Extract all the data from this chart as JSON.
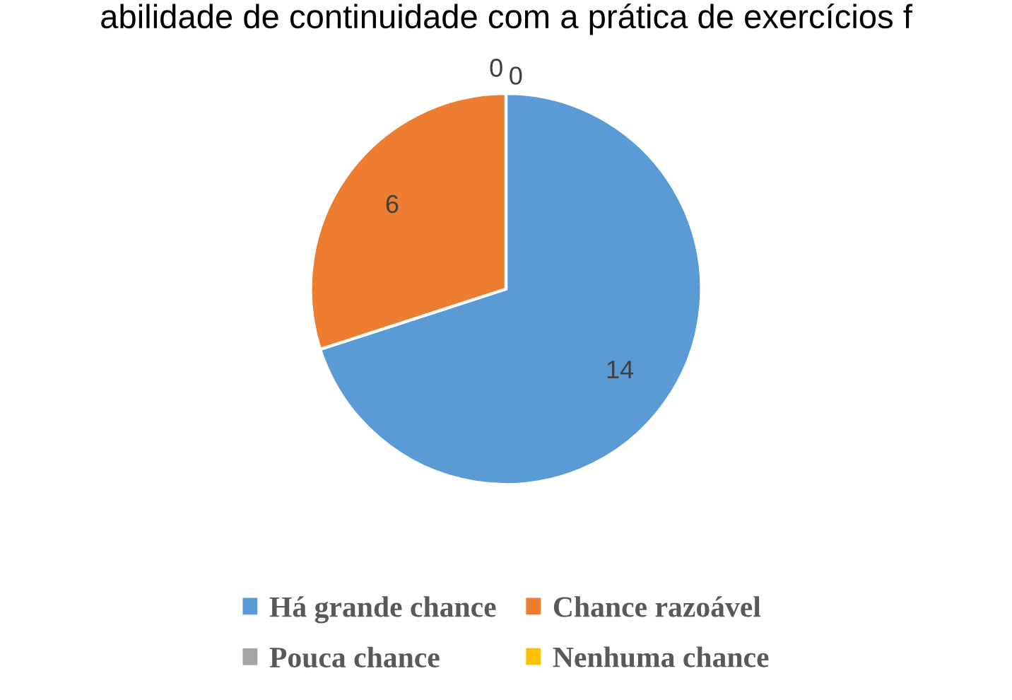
{
  "chart_data": {
    "type": "pie",
    "title": "abilidade de continuidade com a prática de exercícios f",
    "categories": [
      "Há grande chance",
      "Chance razoável",
      "Pouca chance",
      "Nenhuma chance"
    ],
    "values": [
      14,
      6,
      0,
      0
    ],
    "colors": [
      "#5b9bd5",
      "#ed7d31",
      "#a5a5a5",
      "#ffc000"
    ],
    "value_labels": [
      "14",
      "6",
      "0",
      "0"
    ],
    "legend": "bottom"
  }
}
